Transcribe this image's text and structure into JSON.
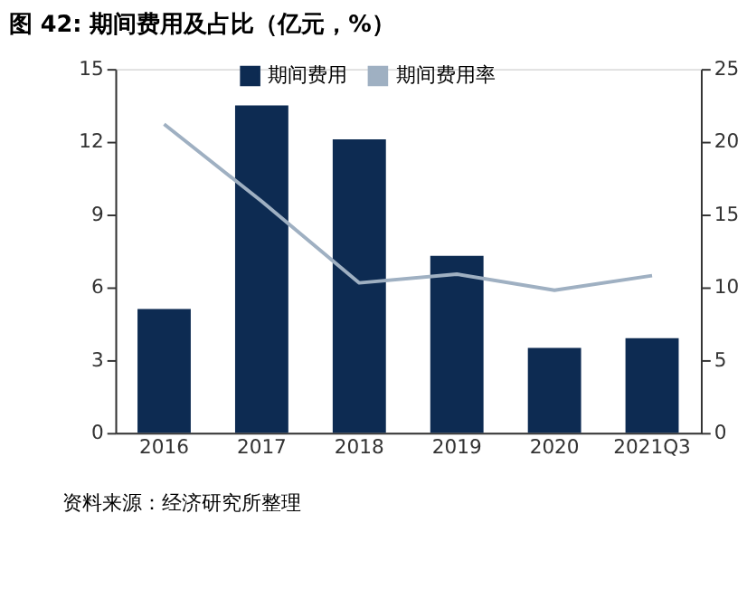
{
  "chart_data": {
    "type": "bar",
    "title": "图 42: 期间费用及占比（亿元，%）",
    "categories": [
      "2016",
      "2017",
      "2018",
      "2019",
      "2020",
      "2021Q3"
    ],
    "series": [
      {
        "name": "期间费用",
        "color": "#0d2b52",
        "values": [
          5.1,
          13.5,
          12.1,
          7.3,
          3.5,
          3.9
        ]
      },
      {
        "name": "期间费用率",
        "type": "line",
        "axis": "y2",
        "color": "#9fb0c2",
        "values": [
          21.2,
          15.9,
          10.3,
          10.9,
          9.8,
          10.8
        ]
      }
    ],
    "ylim": [
      0,
      15
    ],
    "yticks": [
      0,
      3,
      6,
      9,
      12,
      15
    ],
    "y2lim": [
      0,
      25
    ],
    "y2ticks": [
      0,
      5,
      10,
      15,
      20,
      25
    ],
    "grid": false,
    "legend": "top",
    "annotations": [
      "资料来源：经济研究所整理"
    ]
  }
}
